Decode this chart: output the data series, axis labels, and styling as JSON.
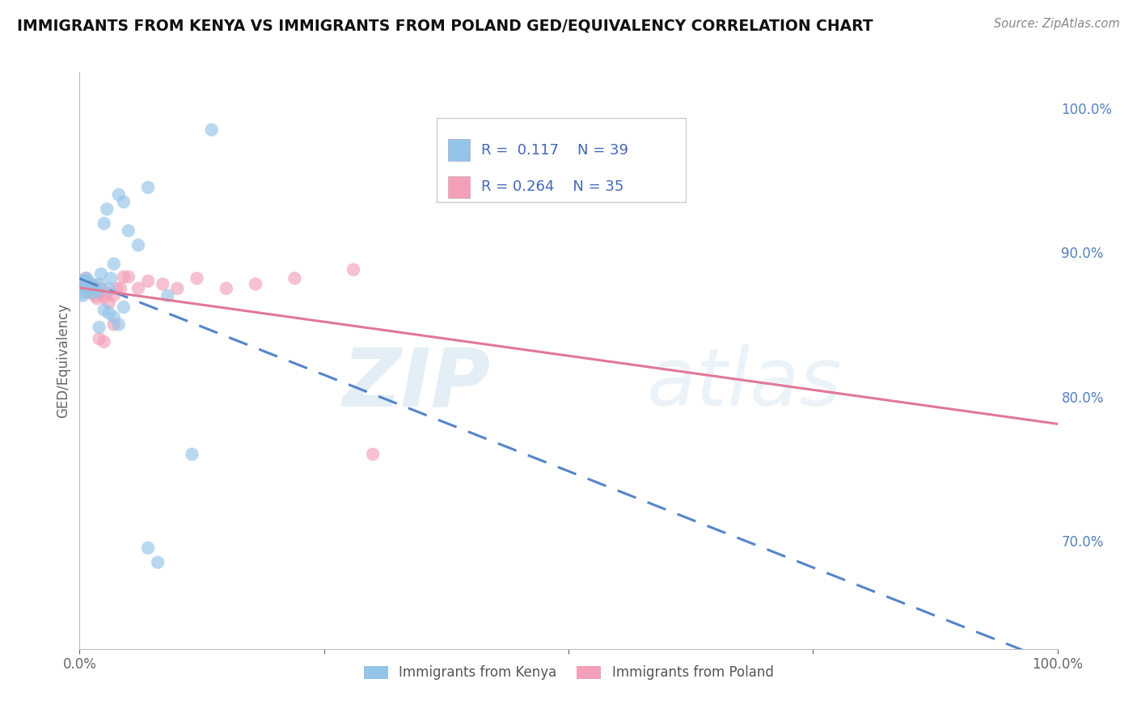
{
  "title": "IMMIGRANTS FROM KENYA VS IMMIGRANTS FROM POLAND GED/EQUIVALENCY CORRELATION CHART",
  "source": "Source: ZipAtlas.com",
  "ylabel": "GED/Equivalency",
  "right_yticks": [
    0.7,
    0.8,
    0.9,
    1.0
  ],
  "right_yticklabels": [
    "70.0%",
    "80.0%",
    "90.0%",
    "100.0%"
  ],
  "legend_label1": "Immigrants from Kenya",
  "legend_label2": "Immigrants from Poland",
  "R1": 0.117,
  "N1": 39,
  "R2": 0.264,
  "N2": 35,
  "color_kenya": "#94C4E8",
  "color_poland": "#F2A0B8",
  "line_color_kenya": "#5585C8",
  "line_color_poland": "#E07898",
  "kenya_x": [
    0.001,
    0.002,
    0.003,
    0.004,
    0.005,
    0.006,
    0.007,
    0.008,
    0.009,
    0.01,
    0.011,
    0.012,
    0.013,
    0.015,
    0.016,
    0.018,
    0.02,
    0.022,
    0.025,
    0.028,
    0.03,
    0.032,
    0.035,
    0.04,
    0.045,
    0.05,
    0.06,
    0.07,
    0.09,
    0.03,
    0.02,
    0.025,
    0.035,
    0.04,
    0.045,
    0.08,
    0.115,
    0.07,
    0.135
  ],
  "kenya_y": [
    0.88,
    0.875,
    0.87,
    0.872,
    0.878,
    0.88,
    0.882,
    0.878,
    0.88,
    0.875,
    0.876,
    0.872,
    0.875,
    0.877,
    0.875,
    0.873,
    0.878,
    0.885,
    0.92,
    0.93,
    0.875,
    0.882,
    0.892,
    0.94,
    0.935,
    0.915,
    0.905,
    0.945,
    0.87,
    0.858,
    0.848,
    0.86,
    0.855,
    0.85,
    0.862,
    0.685,
    0.76,
    0.695,
    0.985
  ],
  "poland_x": [
    0.003,
    0.005,
    0.006,
    0.008,
    0.009,
    0.01,
    0.011,
    0.012,
    0.014,
    0.015,
    0.016,
    0.018,
    0.02,
    0.022,
    0.025,
    0.028,
    0.03,
    0.035,
    0.038,
    0.042,
    0.045,
    0.05,
    0.06,
    0.07,
    0.085,
    0.1,
    0.12,
    0.15,
    0.18,
    0.22,
    0.28,
    0.035,
    0.02,
    0.025,
    0.3
  ],
  "poland_y": [
    0.878,
    0.88,
    0.882,
    0.876,
    0.872,
    0.875,
    0.876,
    0.878,
    0.872,
    0.875,
    0.87,
    0.868,
    0.872,
    0.875,
    0.869,
    0.872,
    0.865,
    0.87,
    0.875,
    0.875,
    0.883,
    0.883,
    0.875,
    0.88,
    0.878,
    0.875,
    0.882,
    0.875,
    0.878,
    0.882,
    0.888,
    0.85,
    0.84,
    0.838,
    0.76
  ],
  "watermark_zip": "ZIP",
  "watermark_atlas": "atlas",
  "bg_color": "#FFFFFF",
  "grid_color": "#CCCCCC",
  "xlim": [
    0.0,
    1.0
  ],
  "ylim": [
    0.625,
    1.025
  ],
  "line_xlim_kenya": [
    0.0,
    0.32
  ],
  "line_xlim_poland": [
    0.0,
    1.0
  ]
}
